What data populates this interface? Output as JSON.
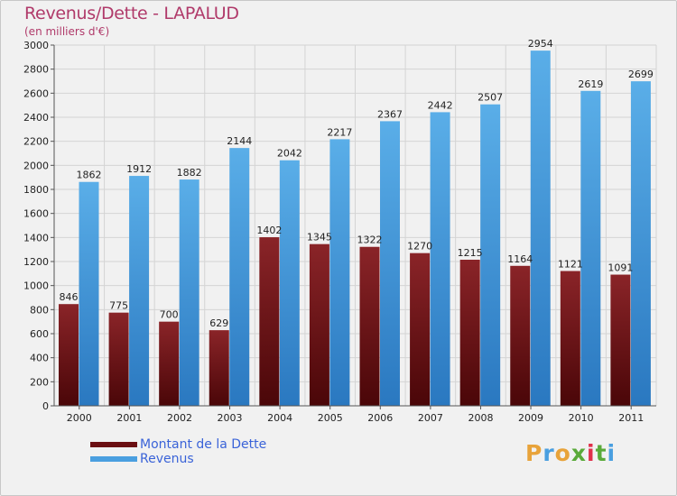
{
  "title": "Revenus/Dette - LAPALUD",
  "subtitle": "(en milliers d'€)",
  "chart_data": {
    "type": "bar",
    "title": "Revenus/Dette - LAPALUD",
    "subtitle": "(en milliers d'€)",
    "categories": [
      "2000",
      "2001",
      "2002",
      "2003",
      "2004",
      "2005",
      "2006",
      "2007",
      "2008",
      "2009",
      "2010",
      "2011"
    ],
    "series": [
      {
        "name": "Montant de la Dette",
        "color": "#7a1418",
        "values": [
          846,
          775,
          700,
          629,
          1402,
          1345,
          1322,
          1270,
          1215,
          1164,
          1121,
          1091
        ],
        "labels": [
          "846",
          "775",
          "700",
          "629",
          "1402",
          "1345",
          "1322",
          "1270",
          "1215",
          "1164",
          "1121",
          "1091"
        ]
      },
      {
        "name": "Revenus",
        "color": "#4a9fe0",
        "values": [
          1862,
          1912,
          1882,
          2144,
          2042,
          2217,
          2367,
          2442,
          2507,
          2954,
          2619,
          2699
        ],
        "labels": [
          "1862",
          "1912",
          "1882",
          "2144",
          "2042",
          "2217",
          "2367",
          "2442",
          "2507",
          "2954",
          "2619",
          "2699"
        ]
      }
    ],
    "ylim": [
      0,
      3000
    ],
    "yticks": [
      0,
      200,
      400,
      600,
      800,
      1000,
      1200,
      1400,
      1600,
      1800,
      2000,
      2200,
      2400,
      2600,
      2800,
      3000
    ],
    "grid": true,
    "legend": "bottom-left"
  },
  "legend": {
    "items": [
      {
        "label": "Montant de la Dette",
        "color": "#6b0f12"
      },
      {
        "label": "Revenus",
        "color": "#4a9fe0"
      }
    ]
  },
  "logo": {
    "letters": [
      "P",
      "r",
      "o",
      "x",
      "i",
      "t",
      "i"
    ],
    "colors": [
      "#e8a33a",
      "#4a9fe0",
      "#e8a33a",
      "#5aaa3a",
      "#e0304a",
      "#5aaa3a",
      "#4a9fe0"
    ]
  }
}
